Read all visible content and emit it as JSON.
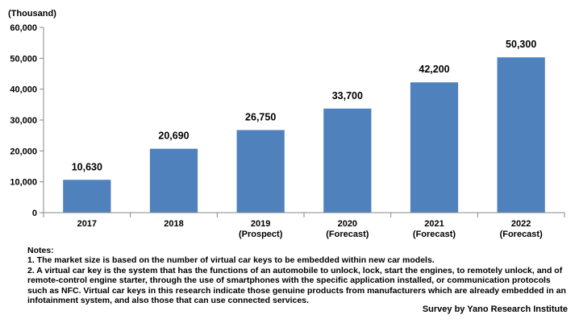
{
  "chart_data": {
    "type": "bar",
    "unit_label": "(Thousand)",
    "categories": [
      {
        "line1": "2017",
        "line2": ""
      },
      {
        "line1": "2018",
        "line2": ""
      },
      {
        "line1": "2019",
        "line2": "(Prospect)"
      },
      {
        "line1": "2020",
        "line2": "(Forecast)"
      },
      {
        "line1": "2021",
        "line2": "(Forecast)"
      },
      {
        "line1": "2022",
        "line2": "(Forecast)"
      }
    ],
    "values": [
      10630,
      20690,
      26750,
      33700,
      42200,
      50300
    ],
    "value_labels": [
      "10,630",
      "20,690",
      "26,750",
      "33,700",
      "42,200",
      "50,300"
    ],
    "ylim": [
      0,
      60000
    ],
    "yticks": [
      0,
      10000,
      20000,
      30000,
      40000,
      50000,
      60000
    ],
    "ytick_labels": [
      "0",
      "10,000",
      "20,000",
      "30,000",
      "40,000",
      "50,000",
      "60,000"
    ],
    "grid": false,
    "legend": "none",
    "bar_color": "#4f81bd"
  },
  "notes": {
    "heading": "Notes:",
    "items": [
      "1. The market size is based on the number of virtual car keys to be embedded within new car models.",
      "2. A virtual car key is the system that has the functions of an automobile to unlock, lock, start the engines, to remotely unlock, and of remote-control engine starter, through the use of smartphones with the specific application installed, or communication protocols such as NFC. Virtual car keys in this research indicate those genuine products from manufacturers which are already embedded in an infotainment system, and also those that can use connected services."
    ]
  },
  "source": "Survey by Yano Research Institute"
}
